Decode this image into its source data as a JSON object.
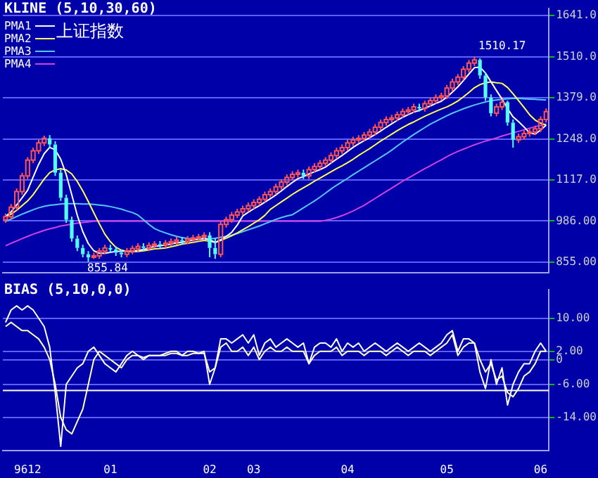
{
  "chart_data": [
    {
      "type": "candlestick",
      "title": "KLINE (5,10,30,60)",
      "subtitle": "上证指数",
      "tick_labels": "y",
      "grid": "y",
      "legend": "top left",
      "marker": "none",
      "categories": [
        null,
        null,
        null,
        null,
        "9612",
        null,
        null,
        null,
        null,
        null,
        null,
        null,
        null,
        null,
        null,
        null,
        null,
        null,
        null,
        "01",
        null,
        null,
        null,
        null,
        null,
        null,
        null,
        null,
        null,
        null,
        null,
        null,
        null,
        null,
        null,
        null,
        null,
        "02",
        null,
        null,
        null,
        null,
        null,
        null,
        null,
        "03",
        null,
        null,
        null,
        null,
        null,
        null,
        null,
        null,
        null,
        null,
        null,
        null,
        null,
        null,
        null,
        null,
        "04",
        null,
        null,
        null,
        null,
        null,
        null,
        null,
        null,
        null,
        null,
        null,
        null,
        null,
        null,
        null,
        null,
        null,
        "05",
        null,
        null,
        null,
        null,
        null,
        null,
        null,
        null,
        null,
        null,
        null,
        null,
        null,
        null,
        null,
        null,
        "06",
        null
      ],
      "ylim": [
        820,
        1665
      ],
      "yticks": [
        {
          "value": 855,
          "label": "855.00"
        },
        {
          "value": 986,
          "label": "986.00"
        },
        {
          "value": 1117,
          "label": "1117.0"
        },
        {
          "value": 1248,
          "label": "1248.0"
        },
        {
          "value": 1379,
          "label": "1379.0"
        },
        {
          "value": 1510,
          "label": "1510.0"
        },
        {
          "value": 1641,
          "label": "1641.0"
        }
      ],
      "annotations": [
        "855.84",
        "1510.17"
      ],
      "ohlc": [
        [
          990,
          1010,
          980,
          1000
        ],
        [
          1000,
          1040,
          990,
          1030
        ],
        [
          1030,
          1090,
          1020,
          1080
        ],
        [
          1080,
          1140,
          1070,
          1130
        ],
        [
          1130,
          1190,
          1120,
          1180
        ],
        [
          1180,
          1220,
          1170,
          1210
        ],
        [
          1210,
          1245,
          1200,
          1235
        ],
        [
          1235,
          1258,
          1225,
          1250
        ],
        [
          1250,
          1260,
          1220,
          1230
        ],
        [
          1230,
          1240,
          1130,
          1140
        ],
        [
          1140,
          1150,
          1050,
          1060
        ],
        [
          1060,
          1070,
          980,
          990
        ],
        [
          990,
          1000,
          920,
          930
        ],
        [
          930,
          940,
          890,
          900
        ],
        [
          900,
          910,
          870,
          880
        ],
        [
          880,
          890,
          855.84,
          870
        ],
        [
          870,
          885,
          865,
          875
        ],
        [
          875,
          900,
          865,
          890
        ],
        [
          890,
          910,
          880,
          900
        ],
        [
          900,
          910,
          885,
          895
        ],
        [
          895,
          905,
          875,
          885
        ],
        [
          885,
          895,
          870,
          880
        ],
        [
          880,
          900,
          870,
          890
        ],
        [
          890,
          908,
          880,
          898
        ],
        [
          898,
          915,
          888,
          905
        ],
        [
          905,
          915,
          890,
          900
        ],
        [
          900,
          918,
          890,
          908
        ],
        [
          908,
          922,
          898,
          912
        ],
        [
          912,
          922,
          900,
          910
        ],
        [
          910,
          925,
          900,
          915
        ],
        [
          915,
          930,
          905,
          920
        ],
        [
          920,
          935,
          910,
          925
        ],
        [
          925,
          935,
          912,
          922
        ],
        [
          922,
          938,
          912,
          928
        ],
        [
          928,
          942,
          918,
          932
        ],
        [
          932,
          945,
          922,
          935
        ],
        [
          935,
          950,
          925,
          940
        ],
        [
          940,
          950,
          870,
          900
        ],
        [
          900,
          930,
          865,
          880
        ],
        [
          880,
          985,
          870,
          975
        ],
        [
          975,
          1000,
          965,
          990
        ],
        [
          990,
          1015,
          980,
          1005
        ],
        [
          1005,
          1025,
          995,
          1015
        ],
        [
          1015,
          1035,
          1005,
          1025
        ],
        [
          1025,
          1045,
          1015,
          1035
        ],
        [
          1035,
          1055,
          1025,
          1045
        ],
        [
          1045,
          1065,
          1035,
          1055
        ],
        [
          1055,
          1080,
          1045,
          1070
        ],
        [
          1070,
          1090,
          1060,
          1080
        ],
        [
          1080,
          1105,
          1070,
          1095
        ],
        [
          1095,
          1120,
          1085,
          1110
        ],
        [
          1110,
          1135,
          1100,
          1125
        ],
        [
          1125,
          1145,
          1115,
          1135
        ],
        [
          1135,
          1150,
          1125,
          1140
        ],
        [
          1140,
          1150,
          1120,
          1130
        ],
        [
          1130,
          1160,
          1120,
          1150
        ],
        [
          1150,
          1170,
          1140,
          1160
        ],
        [
          1160,
          1180,
          1150,
          1170
        ],
        [
          1170,
          1190,
          1160,
          1180
        ],
        [
          1180,
          1205,
          1170,
          1195
        ],
        [
          1195,
          1220,
          1185,
          1210
        ],
        [
          1210,
          1230,
          1200,
          1220
        ],
        [
          1220,
          1245,
          1210,
          1235
        ],
        [
          1235,
          1255,
          1225,
          1245
        ],
        [
          1245,
          1260,
          1235,
          1250
        ],
        [
          1250,
          1270,
          1240,
          1260
        ],
        [
          1260,
          1280,
          1250,
          1270
        ],
        [
          1270,
          1295,
          1260,
          1285
        ],
        [
          1285,
          1310,
          1275,
          1300
        ],
        [
          1300,
          1320,
          1290,
          1310
        ],
        [
          1310,
          1325,
          1300,
          1315
        ],
        [
          1315,
          1335,
          1305,
          1325
        ],
        [
          1325,
          1345,
          1315,
          1335
        ],
        [
          1335,
          1350,
          1325,
          1340
        ],
        [
          1340,
          1360,
          1330,
          1350
        ],
        [
          1350,
          1360,
          1335,
          1345
        ],
        [
          1345,
          1370,
          1335,
          1360
        ],
        [
          1360,
          1380,
          1350,
          1370
        ],
        [
          1370,
          1390,
          1360,
          1380
        ],
        [
          1380,
          1395,
          1370,
          1385
        ],
        [
          1385,
          1420,
          1375,
          1410
        ],
        [
          1410,
          1440,
          1400,
          1430
        ],
        [
          1430,
          1455,
          1420,
          1445
        ],
        [
          1445,
          1480,
          1435,
          1470
        ],
        [
          1470,
          1500,
          1460,
          1490
        ],
        [
          1490,
          1510.17,
          1480,
          1500
        ],
        [
          1500,
          1505,
          1440,
          1450
        ],
        [
          1450,
          1460,
          1370,
          1380
        ],
        [
          1380,
          1390,
          1320,
          1330
        ],
        [
          1330,
          1360,
          1320,
          1350
        ],
        [
          1350,
          1375,
          1340,
          1365
        ],
        [
          1365,
          1370,
          1290,
          1300
        ],
        [
          1300,
          1310,
          1220,
          1245
        ],
        [
          1245,
          1265,
          1235,
          1255
        ],
        [
          1255,
          1275,
          1245,
          1265
        ],
        [
          1265,
          1280,
          1255,
          1270
        ],
        [
          1270,
          1290,
          1260,
          1280
        ],
        [
          1280,
          1320,
          1270,
          1310
        ],
        [
          1310,
          1345,
          1300,
          1335
        ]
      ],
      "series": [
        {
          "name": "PMA1",
          "type": "line",
          "color": "#ffffff",
          "values": [
            1000,
            1015,
            1037,
            1060,
            1084,
            1126,
            1167,
            1201,
            1221,
            1213,
            1183,
            1134,
            1070,
            1004,
            952,
            914,
            891,
            883,
            883,
            886,
            889,
            890,
            890,
            890,
            892,
            895,
            900,
            905,
            907,
            909,
            913,
            916,
            918,
            922,
            925,
            928,
            931,
            927,
            917,
            926,
            937,
            950,
            973,
            1002,
            1014,
            1025,
            1035,
            1046,
            1057,
            1069,
            1082,
            1096,
            1109,
            1121,
            1128,
            1136,
            1143,
            1150,
            1158,
            1171,
            1183,
            1195,
            1208,
            1221,
            1232,
            1242,
            1252,
            1262,
            1273,
            1285,
            1296,
            1307,
            1317,
            1325,
            1333,
            1339,
            1346,
            1353,
            1361,
            1368,
            1381,
            1397,
            1414,
            1434,
            1455,
            1475,
            1477,
            1458,
            1430,
            1402,
            1375,
            1345,
            1318,
            1303,
            1286,
            1267,
            1263,
            1276,
            1292
          ]
        },
        {
          "name": "PMA2",
          "type": "line",
          "color": "#ffff54",
          "values": [
            1000,
            1008,
            1020,
            1035,
            1050,
            1070,
            1095,
            1120,
            1140,
            1149,
            1153,
            1149,
            1136,
            1112,
            1082,
            1048,
            1012,
            977,
            944,
            920,
            902,
            893,
            889,
            888,
            889,
            891,
            894,
            897,
            898,
            900,
            904,
            908,
            912,
            915,
            918,
            921,
            924,
            922,
            918,
            924,
            931,
            939,
            948,
            958,
            968,
            979,
            990,
            1004,
            1023,
            1035,
            1047,
            1059,
            1071,
            1082,
            1092,
            1102,
            1113,
            1123,
            1133,
            1143,
            1153,
            1162,
            1172,
            1183,
            1195,
            1206,
            1217,
            1229,
            1241,
            1252,
            1263,
            1274,
            1284,
            1294,
            1302,
            1311,
            1320,
            1328,
            1336,
            1343,
            1350,
            1359,
            1369,
            1382,
            1396,
            1411,
            1421,
            1427,
            1430,
            1427,
            1425,
            1412,
            1392,
            1370,
            1348,
            1325,
            1308,
            1298,
            1292
          ]
        },
        {
          "name": "PMA3",
          "type": "line",
          "color": "#54c8fc",
          "values": [
            985,
            992,
            1000,
            1008,
            1015,
            1022,
            1028,
            1033,
            1036,
            1038,
            1040,
            1041,
            1041,
            1041,
            1040,
            1040,
            1039,
            1037,
            1035,
            1032,
            1028,
            1024,
            1018,
            1013,
            1005,
            990,
            975,
            962,
            954,
            948,
            942,
            937,
            933,
            930,
            928,
            928,
            928,
            929,
            931,
            934,
            937,
            941,
            946,
            952,
            958,
            964,
            970,
            977,
            984,
            991,
            997,
            1002,
            1006,
            1017,
            1028,
            1039,
            1050,
            1062,
            1075,
            1088,
            1100,
            1111,
            1122,
            1134,
            1145,
            1156,
            1167,
            1178,
            1189,
            1200,
            1212,
            1225,
            1238,
            1250,
            1262,
            1273,
            1284,
            1295,
            1304,
            1313,
            1322,
            1330,
            1337,
            1344,
            1350,
            1356,
            1361,
            1366,
            1370,
            1372,
            1374,
            1376,
            1377,
            1377,
            1376,
            1375,
            1374,
            1373,
            1372
          ]
        },
        {
          "name": "PMA4",
          "type": "line",
          "color": "#d040e0",
          "values": [
            907,
            915,
            922,
            930,
            937,
            944,
            950,
            956,
            961,
            965,
            970,
            973,
            976,
            979,
            981,
            983,
            985,
            985,
            985,
            985,
            985,
            985,
            985,
            985,
            985,
            985,
            985,
            985,
            985,
            985,
            985,
            985,
            985,
            985,
            985,
            985,
            985,
            985,
            985,
            985,
            985,
            985,
            985,
            985,
            985,
            985,
            985,
            985,
            985,
            985,
            985,
            985,
            985,
            985,
            985,
            985,
            985,
            985,
            988,
            992,
            997,
            1003,
            1010,
            1018,
            1027,
            1036,
            1047,
            1058,
            1069,
            1080,
            1091,
            1102,
            1113,
            1123,
            1133,
            1143,
            1153,
            1162,
            1172,
            1181,
            1191,
            1200,
            1208,
            1215,
            1222,
            1229,
            1235,
            1241,
            1246,
            1251,
            1257,
            1262,
            1267,
            1272,
            1277,
            1282,
            1287,
            1291,
            1295
          ]
        }
      ]
    },
    {
      "type": "line",
      "title": "BIAS (5,10,0,0)",
      "grid": "y",
      "marker": "none",
      "categories": [
        null,
        null,
        null,
        null,
        "9612",
        null,
        null,
        null,
        null,
        null,
        null,
        null,
        null,
        null,
        null,
        null,
        null,
        null,
        null,
        "01",
        null,
        null,
        null,
        null,
        null,
        null,
        null,
        null,
        null,
        null,
        null,
        null,
        null,
        null,
        null,
        null,
        null,
        "02",
        null,
        null,
        null,
        null,
        null,
        null,
        null,
        "03",
        null,
        null,
        null,
        null,
        null,
        null,
        null,
        null,
        null,
        null,
        null,
        null,
        null,
        null,
        null,
        null,
        "04",
        null,
        null,
        null,
        null,
        null,
        null,
        null,
        null,
        null,
        null,
        null,
        null,
        null,
        null,
        null,
        null,
        null,
        "05",
        null,
        null,
        null,
        null,
        null,
        null,
        null,
        null,
        null,
        null,
        null,
        null,
        null,
        null,
        null,
        null,
        "06",
        null
      ],
      "ylim": [
        -22,
        17
      ],
      "yticks": [
        {
          "value": 10,
          "label": "10.00"
        },
        {
          "value": 2,
          "label": "2.00"
        },
        0,
        {
          "value": -6,
          "label": "-6.00"
        },
        {
          "value": -14,
          "label": "-14.00"
        }
      ],
      "ref_lines": [
        {
          "axis": "y",
          "value": -7.5,
          "color": "#ffffff"
        }
      ],
      "series": [
        {
          "color": "#ffffff",
          "values": [
            9,
            12,
            13,
            12,
            13,
            12,
            10,
            8,
            3,
            -8,
            -21,
            -6,
            -4,
            -2,
            -1,
            2,
            3,
            1,
            -1,
            -2,
            -3,
            -1,
            1,
            2,
            1,
            0,
            1,
            1,
            1,
            1.5,
            2,
            2,
            1,
            2,
            2,
            1.5,
            2,
            -6,
            -2,
            5,
            5,
            4,
            5,
            6,
            4,
            6,
            1,
            4,
            5,
            3,
            4,
            5,
            4,
            3,
            4,
            -1,
            3,
            4,
            4,
            3,
            5,
            2,
            4,
            3,
            4,
            2,
            3,
            4,
            3,
            2,
            3,
            4,
            3,
            2,
            3,
            4,
            3,
            2,
            3,
            4,
            6,
            7,
            2,
            5,
            5,
            4,
            -3,
            -7,
            0,
            -6,
            -2,
            -11,
            -6,
            -3,
            -1,
            -1,
            2,
            4,
            2
          ]
        },
        {
          "color": "#ffffc0",
          "values": [
            8,
            9,
            8,
            7,
            7,
            6,
            5,
            3,
            0,
            -6,
            -14,
            -17,
            -18,
            -15,
            -12,
            -6,
            0,
            2,
            1,
            0,
            -1,
            -2,
            0,
            1,
            1,
            0.5,
            1,
            1,
            1,
            1,
            1.5,
            1.5,
            1,
            1,
            1.5,
            1.5,
            1.5,
            -3,
            -2,
            3,
            4,
            2,
            2,
            3,
            1,
            3,
            0,
            2,
            3,
            2,
            2,
            3,
            2,
            2,
            2,
            -1,
            1,
            2,
            2,
            2,
            3,
            1,
            2,
            2,
            2,
            1,
            2,
            2,
            2,
            1,
            2,
            3,
            2,
            1,
            2,
            2,
            2,
            1,
            2,
            3,
            4,
            6,
            1,
            3,
            4,
            4,
            0,
            -3,
            -1,
            -5,
            -4,
            -8,
            -9,
            -7,
            -4,
            -3,
            -1,
            2,
            2
          ]
        }
      ]
    }
  ]
}
